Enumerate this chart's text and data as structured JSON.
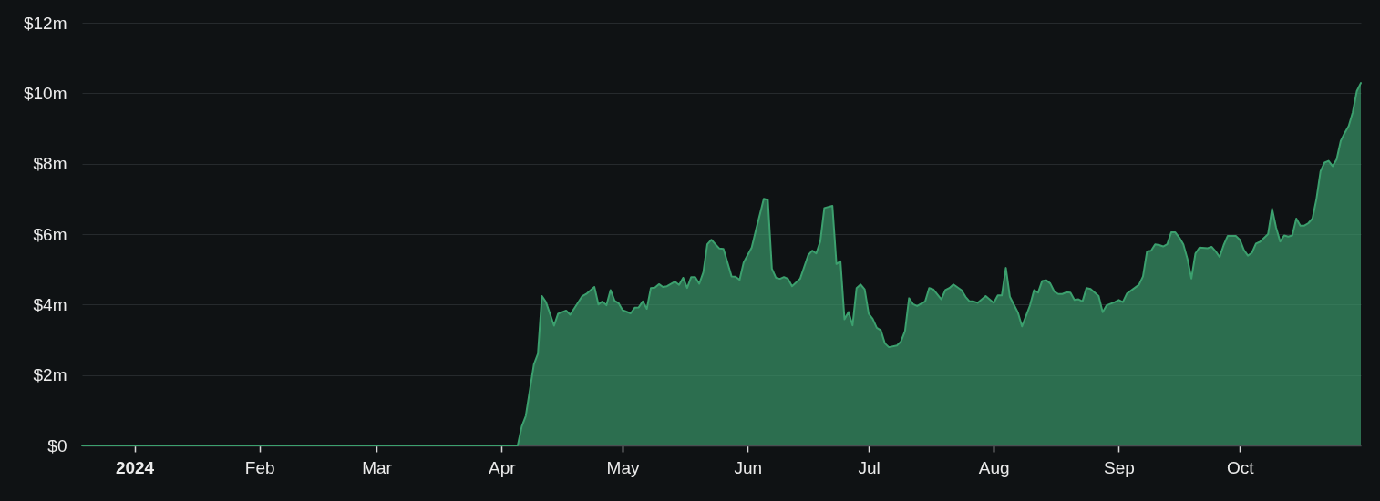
{
  "chart_data": {
    "type": "area",
    "x": [
      "2023-12-19",
      "2024-04-05",
      "2024-04-06",
      "2024-04-07",
      "2024-04-09",
      "2024-04-10",
      "2024-04-11",
      "2024-04-12",
      "2024-04-14",
      "2024-04-15",
      "2024-04-17",
      "2024-04-18",
      "2024-04-21",
      "2024-04-22",
      "2024-04-24",
      "2024-04-25",
      "2024-04-26",
      "2024-04-27",
      "2024-04-28",
      "2024-04-29",
      "2024-04-30",
      "2024-05-01",
      "2024-05-03",
      "2024-05-04",
      "2024-05-05",
      "2024-05-06",
      "2024-05-07",
      "2024-05-08",
      "2024-05-09",
      "2024-05-10",
      "2024-05-11",
      "2024-05-12",
      "2024-05-14",
      "2024-05-15",
      "2024-05-16",
      "2024-05-17",
      "2024-05-18",
      "2024-05-19",
      "2024-05-20",
      "2024-05-21",
      "2024-05-22",
      "2024-05-23",
      "2024-05-24",
      "2024-05-25",
      "2024-05-26",
      "2024-05-28",
      "2024-05-29",
      "2024-05-30",
      "2024-05-31",
      "2024-06-02",
      "2024-06-03",
      "2024-06-05",
      "2024-06-06",
      "2024-06-07",
      "2024-06-08",
      "2024-06-09",
      "2024-06-10",
      "2024-06-11",
      "2024-06-12",
      "2024-06-14",
      "2024-06-16",
      "2024-06-17",
      "2024-06-18",
      "2024-06-19",
      "2024-06-20",
      "2024-06-22",
      "2024-06-23",
      "2024-06-24",
      "2024-06-25",
      "2024-06-26",
      "2024-06-27",
      "2024-06-28",
      "2024-06-29",
      "2024-06-30",
      "2024-07-01",
      "2024-07-02",
      "2024-07-03",
      "2024-07-04",
      "2024-07-05",
      "2024-07-06",
      "2024-07-08",
      "2024-07-09",
      "2024-07-10",
      "2024-07-11",
      "2024-07-12",
      "2024-07-13",
      "2024-07-15",
      "2024-07-16",
      "2024-07-17",
      "2024-07-19",
      "2024-07-20",
      "2024-07-21",
      "2024-07-22",
      "2024-07-24",
      "2024-07-25",
      "2024-07-26",
      "2024-07-27",
      "2024-07-28",
      "2024-07-30",
      "2024-08-01",
      "2024-08-02",
      "2024-08-03",
      "2024-08-04",
      "2024-08-05",
      "2024-08-07",
      "2024-08-08",
      "2024-08-10",
      "2024-08-11",
      "2024-08-12",
      "2024-08-13",
      "2024-08-14",
      "2024-08-15",
      "2024-08-16",
      "2024-08-17",
      "2024-08-18",
      "2024-08-19",
      "2024-08-20",
      "2024-08-21",
      "2024-08-22",
      "2024-08-23",
      "2024-08-24",
      "2024-08-25",
      "2024-08-27",
      "2024-08-28",
      "2024-08-29",
      "2024-08-31",
      "2024-09-01",
      "2024-09-02",
      "2024-09-03",
      "2024-09-06",
      "2024-09-07",
      "2024-09-08",
      "2024-09-09",
      "2024-09-10",
      "2024-09-11",
      "2024-09-12",
      "2024-09-13",
      "2024-09-14",
      "2024-09-15",
      "2024-09-16",
      "2024-09-17",
      "2024-09-18",
      "2024-09-19",
      "2024-09-20",
      "2024-09-21",
      "2024-09-23",
      "2024-09-24",
      "2024-09-25",
      "2024-09-26",
      "2024-09-27",
      "2024-09-28",
      "2024-09-30",
      "2024-10-01",
      "2024-10-02",
      "2024-10-03",
      "2024-10-04",
      "2024-10-05",
      "2024-10-06",
      "2024-10-08",
      "2024-10-09",
      "2024-10-10",
      "2024-10-11",
      "2024-10-12",
      "2024-10-13",
      "2024-10-14",
      "2024-10-15",
      "2024-10-16",
      "2024-10-17",
      "2024-10-18",
      "2024-10-19",
      "2024-10-20",
      "2024-10-21",
      "2024-10-22",
      "2024-10-23",
      "2024-10-24",
      "2024-10-25",
      "2024-10-26",
      "2024-10-27",
      "2024-10-28",
      "2024-10-29",
      "2024-10-30",
      "2024-10-31"
    ],
    "series": [
      {
        "color": "#3ca06e",
        "values": [
          0,
          0,
          0.54,
          0.84,
          2.3,
          2.6,
          4.24,
          4.07,
          3.4,
          3.74,
          3.83,
          3.71,
          4.24,
          4.3,
          4.5,
          4.0,
          4.09,
          3.98,
          4.41,
          4.11,
          4.04,
          3.84,
          3.75,
          3.91,
          3.92,
          4.09,
          3.88,
          4.47,
          4.48,
          4.58,
          4.5,
          4.52,
          4.65,
          4.56,
          4.76,
          4.47,
          4.78,
          4.78,
          4.59,
          4.91,
          5.71,
          5.84,
          5.71,
          5.59,
          5.58,
          4.8,
          4.79,
          4.7,
          5.19,
          5.62,
          6.09,
          7.0,
          6.97,
          5.02,
          4.76,
          4.73,
          4.78,
          4.73,
          4.52,
          4.73,
          5.4,
          5.53,
          5.45,
          5.79,
          6.74,
          6.8,
          5.15,
          5.23,
          3.58,
          3.79,
          3.41,
          4.47,
          4.57,
          4.43,
          3.74,
          3.59,
          3.34,
          3.27,
          2.9,
          2.79,
          2.84,
          2.95,
          3.25,
          4.18,
          4.01,
          3.96,
          4.09,
          4.47,
          4.43,
          4.15,
          4.41,
          4.47,
          4.57,
          4.41,
          4.22,
          4.09,
          4.09,
          4.05,
          4.24,
          4.05,
          4.26,
          4.26,
          5.04,
          4.22,
          3.77,
          3.38,
          3.98,
          4.41,
          4.34,
          4.67,
          4.69,
          4.6,
          4.37,
          4.3,
          4.3,
          4.35,
          4.34,
          4.13,
          4.15,
          4.09,
          4.47,
          4.44,
          4.24,
          3.78,
          3.98,
          4.07,
          4.13,
          4.07,
          4.31,
          4.56,
          4.8,
          5.51,
          5.53,
          5.71,
          5.69,
          5.65,
          5.71,
          6.05,
          6.05,
          5.9,
          5.71,
          5.3,
          4.74,
          5.45,
          5.62,
          5.6,
          5.64,
          5.51,
          5.35,
          5.69,
          5.95,
          5.95,
          5.84,
          5.55,
          5.39,
          5.47,
          5.73,
          5.78,
          6.0,
          6.72,
          6.18,
          5.79,
          5.96,
          5.93,
          5.96,
          6.44,
          6.24,
          6.24,
          6.31,
          6.44,
          7.0,
          7.78,
          8.03,
          8.08,
          7.93,
          8.12,
          8.64,
          8.87,
          9.07,
          9.46,
          10.06,
          10.29
        ]
      }
    ],
    "xlim": [
      "2023-12-19",
      "2024-10-31"
    ],
    "xticks": [
      {
        "value": "2024-01-01",
        "label": "2024"
      },
      {
        "value": "2024-02-01",
        "label": "Feb"
      },
      {
        "value": "2024-03-01",
        "label": "Mar"
      },
      {
        "value": "2024-04-01",
        "label": "Apr"
      },
      {
        "value": "2024-05-01",
        "label": "May"
      },
      {
        "value": "2024-06-01",
        "label": "Jun"
      },
      {
        "value": "2024-07-01",
        "label": "Jul"
      },
      {
        "value": "2024-08-01",
        "label": "Aug"
      },
      {
        "value": "2024-09-01",
        "label": "Sep"
      },
      {
        "value": "2024-10-01",
        "label": "Oct"
      }
    ],
    "ylim": [
      0,
      12
    ],
    "yticks": [
      {
        "value": 0,
        "label": "$0"
      },
      {
        "value": 2,
        "label": "$2m"
      },
      {
        "value": 4,
        "label": "$4m"
      },
      {
        "value": 6,
        "label": "$6m"
      },
      {
        "value": 8,
        "label": "$8m"
      },
      {
        "value": 10,
        "label": "$10m"
      },
      {
        "value": 12,
        "label": "$12m"
      }
    ],
    "grid": "y"
  }
}
